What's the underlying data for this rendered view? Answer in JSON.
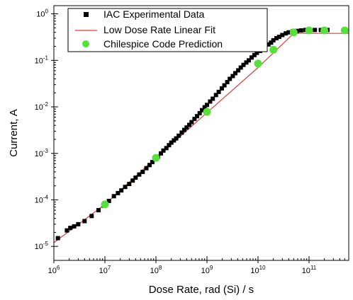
{
  "chart_data": {
    "type": "scatter",
    "xscale": "log",
    "yscale": "log",
    "xlabel": "Dose Rate, rad (Si) / s",
    "ylabel": "Current, A",
    "xlim": [
      1000000,
      600000000000
    ],
    "ylim": [
      5e-06,
      1.5
    ],
    "x_tick_labels": [
      {
        "base": "10",
        "exp": "6",
        "value": 1000000
      },
      {
        "base": "10",
        "exp": "7",
        "value": 10000000
      },
      {
        "base": "10",
        "exp": "8",
        "value": 100000000
      },
      {
        "base": "10",
        "exp": "9",
        "value": 1000000000
      },
      {
        "base": "10",
        "exp": "10",
        "value": 10000000000
      },
      {
        "base": "10",
        "exp": "11",
        "value": 100000000000
      }
    ],
    "y_tick_labels": [
      {
        "base": "10",
        "exp": "-5",
        "value": 1e-05
      },
      {
        "base": "10",
        "exp": "-4",
        "value": 0.0001
      },
      {
        "base": "10",
        "exp": "-3",
        "value": 0.001
      },
      {
        "base": "10",
        "exp": "-2",
        "value": 0.01
      },
      {
        "base": "10",
        "exp": "-1",
        "value": 0.1
      },
      {
        "base": "10",
        "exp": "0",
        "value": 1
      }
    ],
    "legend_position": "top-left",
    "grid": false,
    "series": [
      {
        "name": "IAC Experimental Data",
        "marker": "square",
        "color": "#000000",
        "points": [
          [
            1200000,
            1.5e-05
          ],
          [
            1800000,
            2.2e-05
          ],
          [
            2100000,
            2.5e-05
          ],
          [
            2500000,
            2.7e-05
          ],
          [
            3000000,
            3e-05
          ],
          [
            4000000,
            3.5e-05
          ],
          [
            5500000,
            4.5e-05
          ],
          [
            7500000,
            6e-05
          ],
          [
            9500000,
            7.5e-05
          ],
          [
            12000000,
            9.5e-05
          ],
          [
            15000000,
            0.00012
          ],
          [
            18000000,
            0.00014
          ],
          [
            21000000,
            0.00016
          ],
          [
            25000000,
            0.00019
          ],
          [
            30000000,
            0.00022
          ],
          [
            35000000,
            0.00026
          ],
          [
            40000000,
            0.0003
          ],
          [
            47000000,
            0.00035
          ],
          [
            55000000,
            0.0004
          ],
          [
            65000000,
            0.00048
          ],
          [
            75000000,
            0.00056
          ],
          [
            85000000,
            0.00065
          ],
          [
            95000000,
            0.00075
          ],
          [
            110000000,
            0.00085
          ],
          [
            125000000,
            0.001
          ],
          [
            140000000,
            0.00115
          ],
          [
            160000000,
            0.0013
          ],
          [
            180000000,
            0.0015
          ],
          [
            200000000,
            0.0017
          ],
          [
            225000000,
            0.0019
          ],
          [
            250000000,
            0.0021
          ],
          [
            280000000,
            0.0024
          ],
          [
            320000000,
            0.0028
          ],
          [
            360000000,
            0.0032
          ],
          [
            400000000,
            0.0036
          ],
          [
            450000000,
            0.0041
          ],
          [
            500000000,
            0.0047
          ],
          [
            570000000,
            0.0055
          ],
          [
            640000000,
            0.0063
          ],
          [
            720000000,
            0.0073
          ],
          [
            800000000,
            0.0085
          ],
          [
            900000000,
            0.0098
          ],
          [
            1000000000,
            0.011
          ],
          [
            1150000000,
            0.013
          ],
          [
            1300000000,
            0.015
          ],
          [
            1500000000,
            0.018
          ],
          [
            1700000000,
            0.021
          ],
          [
            1950000000,
            0.025
          ],
          [
            2200000000,
            0.029
          ],
          [
            2500000000,
            0.034
          ],
          [
            2800000000,
            0.04
          ],
          [
            3200000000,
            0.046
          ],
          [
            3600000000,
            0.053
          ],
          [
            4100000000,
            0.061
          ],
          [
            4600000000,
            0.07
          ],
          [
            5200000000,
            0.08
          ],
          [
            5900000000,
            0.09
          ],
          [
            6600000000,
            0.1
          ],
          [
            7500000000,
            0.115
          ],
          [
            8500000000,
            0.13
          ],
          [
            9500000000,
            0.145
          ],
          [
            11000000000,
            0.16
          ],
          [
            12500000000,
            0.18
          ],
          [
            14000000000,
            0.2
          ],
          [
            16000000000,
            0.22
          ],
          [
            18000000000,
            0.24
          ],
          [
            20000000000,
            0.27
          ],
          [
            23000000000,
            0.3
          ],
          [
            26000000000,
            0.32
          ],
          [
            30000000000,
            0.35
          ],
          [
            35000000000,
            0.38
          ],
          [
            40000000000,
            0.4
          ],
          [
            48000000000,
            0.42
          ],
          [
            58000000000,
            0.43
          ],
          [
            70000000000,
            0.44
          ],
          [
            85000000000,
            0.45
          ],
          [
            100000000000,
            0.45
          ],
          [
            130000000000,
            0.45
          ],
          [
            170000000000,
            0.45
          ],
          [
            230000000000,
            0.45
          ]
        ]
      },
      {
        "name": "Low Dose Rate Linear Fit",
        "line": true,
        "color": "#e33b3b",
        "points": [
          [
            1000000,
            1.2e-05
          ],
          [
            10000000,
            8e-05
          ],
          [
            100000000,
            0.0008
          ],
          [
            1000000000,
            0.0075
          ],
          [
            10000000000,
            0.07
          ],
          [
            50000000000,
            0.38
          ],
          [
            600000000000,
            0.38
          ]
        ]
      },
      {
        "name": "Chilespice Code Prediction",
        "marker": "circle",
        "color": "#55e13a",
        "points": [
          [
            10000000,
            8e-05
          ],
          [
            100000000,
            0.0008
          ],
          [
            1000000000,
            0.0078
          ],
          [
            10000000000,
            0.085
          ],
          [
            20000000000,
            0.17
          ],
          [
            50000000000,
            0.4
          ],
          [
            100000000000,
            0.44
          ],
          [
            200000000000,
            0.44
          ],
          [
            500000000000,
            0.44
          ]
        ]
      }
    ]
  }
}
